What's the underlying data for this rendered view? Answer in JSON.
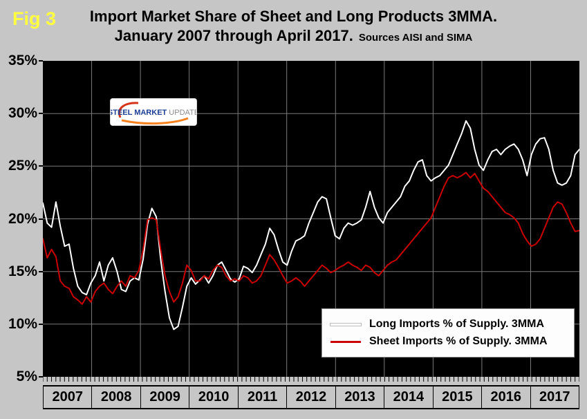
{
  "fig_label": "Fig 3",
  "title": {
    "line1": "Import Market Share of Sheet and Long Products 3MMA.",
    "line2": "January 2007 through April 2017.",
    "source": "Sources AISI and SIMA"
  },
  "logo": {
    "text_primary": "STEEL MARKET",
    "text_secondary": "UPDATE"
  },
  "colors": {
    "page_bg": "#c6c6c6",
    "plot_bg": "#000000",
    "grid": "#7a7a7a",
    "fig_label": "#ffff40",
    "long_line": "#ffffff",
    "sheet_line": "#cc0000"
  },
  "chart_data": {
    "type": "line",
    "title": "Import Market Share of Sheet and Long Products 3MMA. January 2007 through April 2017.",
    "x_start": "2007-01",
    "x_end": "2017-04",
    "n_points": 124,
    "ylim": [
      5,
      35
    ],
    "y_tick_labels": [
      "35%",
      "30%",
      "25%",
      "20%",
      "15%",
      "10%",
      "5%"
    ],
    "y_gridlines": [
      30,
      25,
      20,
      15,
      10
    ],
    "year_labels": [
      "2007",
      "2008",
      "2009",
      "2010",
      "2011",
      "2012",
      "2013",
      "2014",
      "2015",
      "2016",
      "2017"
    ],
    "grid": true,
    "legend_position": "inside-bottom-right",
    "series": [
      {
        "name": "Long Imports % of Supply. 3MMA",
        "color": "#ffffff",
        "values": [
          21.5,
          19.6,
          19.2,
          21.6,
          19.3,
          17.4,
          17.6,
          15.3,
          13.6,
          13.0,
          12.8,
          13.9,
          14.6,
          15.9,
          14.1,
          15.6,
          16.3,
          15.0,
          13.3,
          13.1,
          14.1,
          14.4,
          14.2,
          16.2,
          19.5,
          21.0,
          20.2,
          16.2,
          13.1,
          10.6,
          9.5,
          9.8,
          11.6,
          13.6,
          14.4,
          13.8,
          14.2,
          14.6,
          13.9,
          14.6,
          15.6,
          15.9,
          15.1,
          14.3,
          14.0,
          14.3,
          15.5,
          15.3,
          14.9,
          15.6,
          16.6,
          17.6,
          19.1,
          18.5,
          17.1,
          15.9,
          15.6,
          16.9,
          17.9,
          18.1,
          18.4,
          19.6,
          20.6,
          21.6,
          22.1,
          21.9,
          20.1,
          18.4,
          18.1,
          19.1,
          19.6,
          19.4,
          19.6,
          19.9,
          21.1,
          22.6,
          21.1,
          20.1,
          19.6,
          20.6,
          21.1,
          21.6,
          22.1,
          23.1,
          23.6,
          24.6,
          25.4,
          25.6,
          24.1,
          23.6,
          23.9,
          24.1,
          24.6,
          25.1,
          26.1,
          27.1,
          28.1,
          29.3,
          28.6,
          26.6,
          25.1,
          24.6,
          25.6,
          26.4,
          26.6,
          26.1,
          26.6,
          26.9,
          27.1,
          26.6,
          25.6,
          24.1,
          26.1,
          27.1,
          27.6,
          27.7,
          26.6,
          24.6,
          23.4,
          23.2,
          23.4,
          24.1,
          26.1,
          26.6
        ]
      },
      {
        "name": "Sheet Imports % of Supply. 3MMA",
        "color": "#cc0000",
        "values": [
          18.1,
          16.3,
          17.1,
          16.4,
          14.1,
          13.6,
          13.4,
          12.6,
          12.3,
          11.9,
          12.6,
          12.1,
          13.1,
          13.6,
          13.9,
          13.3,
          12.9,
          13.6,
          14.1,
          13.6,
          14.6,
          14.4,
          15.1,
          17.1,
          19.9,
          20.1,
          19.9,
          17.1,
          14.6,
          13.1,
          12.1,
          12.6,
          13.9,
          15.6,
          15.1,
          14.1,
          14.1,
          14.6,
          14.3,
          15.1,
          15.6,
          15.4,
          14.6,
          14.1,
          14.3,
          14.1,
          14.6,
          14.4,
          13.9,
          14.1,
          14.6,
          15.6,
          16.6,
          16.1,
          15.4,
          14.6,
          13.9,
          14.1,
          14.4,
          14.1,
          13.6,
          14.1,
          14.6,
          15.1,
          15.6,
          15.3,
          14.9,
          15.1,
          15.4,
          15.6,
          15.9,
          15.6,
          15.4,
          15.1,
          15.6,
          15.4,
          14.9,
          14.6,
          15.1,
          15.6,
          15.9,
          16.1,
          16.6,
          17.1,
          17.6,
          18.1,
          18.6,
          19.1,
          19.6,
          20.1,
          21.1,
          22.1,
          23.1,
          23.9,
          24.1,
          23.9,
          24.1,
          24.4,
          23.9,
          24.3,
          23.6,
          22.9,
          22.6,
          22.1,
          21.6,
          21.1,
          20.6,
          20.4,
          20.1,
          19.6,
          18.6,
          17.9,
          17.4,
          17.6,
          18.1,
          19.1,
          20.1,
          21.1,
          21.6,
          21.4,
          20.6,
          19.6,
          18.8,
          18.9
        ]
      }
    ]
  }
}
